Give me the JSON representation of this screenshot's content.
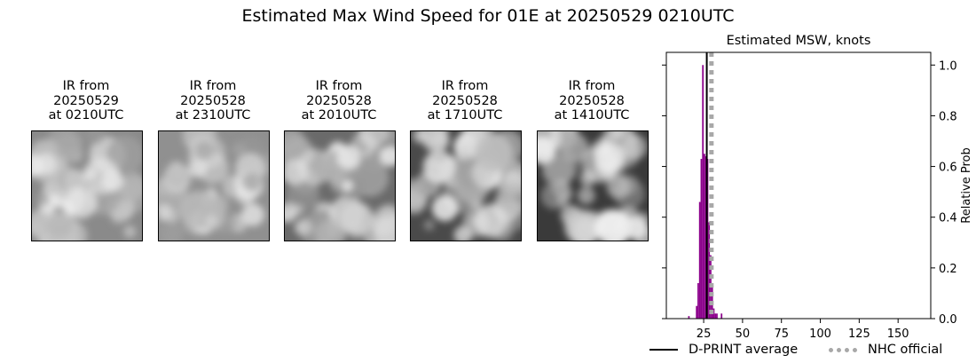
{
  "suptitle": "Estimated Max Wind Speed for 01E at 20250529 0210UTC",
  "panels": [
    {
      "title": "IR from\n20250529\nat 0210UTC",
      "image": "ir-satellite-image"
    },
    {
      "title": "IR from\n20250528\nat 2310UTC",
      "image": "ir-satellite-image"
    },
    {
      "title": "IR from\n20250528\nat 2010UTC",
      "image": "ir-satellite-image"
    },
    {
      "title": "IR from\n20250528\nat 1710UTC",
      "image": "ir-satellite-image"
    },
    {
      "title": "IR from\n20250528\nat 1410UTC",
      "image": "ir-satellite-image"
    }
  ],
  "chart_data": {
    "type": "bar",
    "title": "Estimated MSW, knots",
    "xlabel": "",
    "ylabel": "Relative Prob",
    "xlim": [
      1,
      171
    ],
    "ylim": [
      0,
      1.05
    ],
    "xticks": [
      25,
      50,
      75,
      100,
      125,
      150
    ],
    "yticks": [
      0.0,
      0.2,
      0.4,
      0.6,
      0.8,
      1.0
    ],
    "ytick_labels": [
      "0.0",
      "0.2",
      "0.4",
      "0.6",
      "0.8",
      "1.0"
    ],
    "y_axis_side": "right",
    "bar_color": "#8b008b",
    "bins": [
      {
        "x": 15.5,
        "value": 0.01
      },
      {
        "x": 20.5,
        "value": 0.05
      },
      {
        "x": 21.5,
        "value": 0.14
      },
      {
        "x": 22.5,
        "value": 0.46
      },
      {
        "x": 23.5,
        "value": 0.63
      },
      {
        "x": 24.5,
        "value": 1.0
      },
      {
        "x": 25.5,
        "value": 0.65
      },
      {
        "x": 26.5,
        "value": 0.64
      },
      {
        "x": 27.5,
        "value": 0.63
      },
      {
        "x": 28.5,
        "value": 0.38
      },
      {
        "x": 29.5,
        "value": 0.25
      },
      {
        "x": 30.5,
        "value": 0.13
      },
      {
        "x": 31.5,
        "value": 0.04
      },
      {
        "x": 32.5,
        "value": 0.02
      },
      {
        "x": 33.5,
        "value": 0.02
      },
      {
        "x": 36.5,
        "value": 0.02
      }
    ],
    "bin_width": 1,
    "dprint_average": 27,
    "nhc_official": 30,
    "legend": {
      "dprint": "D-PRINT average",
      "nhc": "NHC official"
    },
    "legend_position": "bottom"
  }
}
